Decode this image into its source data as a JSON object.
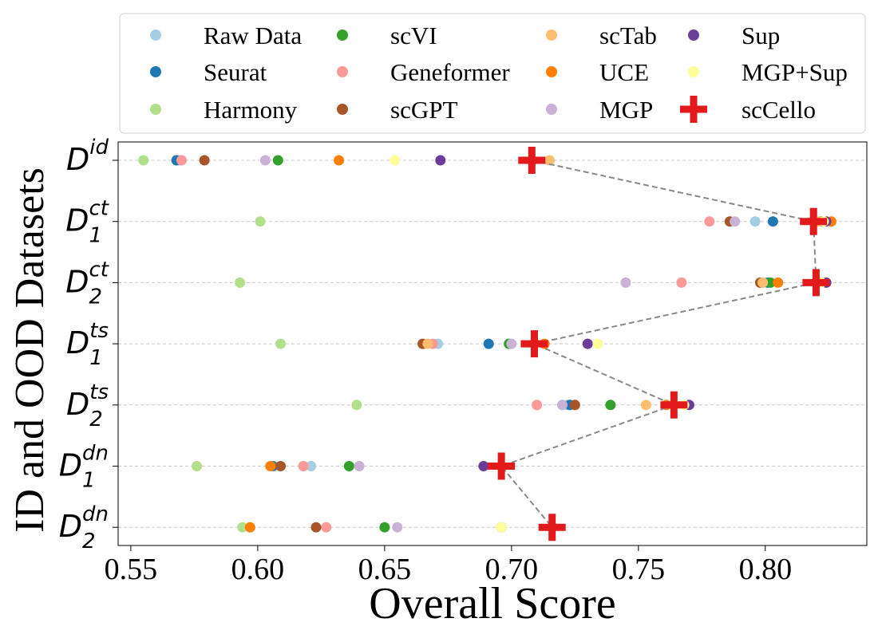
{
  "chart_data": {
    "type": "scatter",
    "title": "",
    "xlabel": "Overall Score",
    "ylabel": "ID and OOD Datasets",
    "xlim": [
      0.545,
      0.84
    ],
    "xticks": [
      "0.55",
      "0.60",
      "0.65",
      "0.70",
      "0.75",
      "0.80"
    ],
    "xtick_values": [
      0.55,
      0.6,
      0.65,
      0.7,
      0.75,
      0.8
    ],
    "grid": "horizontal dashed",
    "legend_position": "top",
    "categories": [
      {
        "base": "D",
        "sup": "id",
        "sub": ""
      },
      {
        "base": "D",
        "sup": "ct",
        "sub": "1"
      },
      {
        "base": "D",
        "sup": "ct",
        "sub": "2"
      },
      {
        "base": "D",
        "sup": "ts",
        "sub": "1"
      },
      {
        "base": "D",
        "sup": "ts",
        "sub": "2"
      },
      {
        "base": "D",
        "sup": "dn",
        "sub": "1"
      },
      {
        "base": "D",
        "sup": "dn",
        "sub": "2"
      }
    ],
    "series": [
      {
        "name": "Raw Data",
        "color": "#a6cee3",
        "values": [
          0.569,
          0.796,
          0.799,
          0.671,
          0.722,
          0.621,
          0.696
        ]
      },
      {
        "name": "Seurat",
        "color": "#1f78b4",
        "values": [
          0.568,
          0.803,
          0.801,
          0.691,
          0.723,
          0.606,
          0.696
        ]
      },
      {
        "name": "Harmony",
        "color": "#b2df8a",
        "values": [
          0.555,
          0.601,
          0.593,
          0.609,
          0.639,
          0.576,
          0.594
        ]
      },
      {
        "name": "scVI",
        "color": "#33a02c",
        "values": [
          0.608,
          0.822,
          0.802,
          0.699,
          0.739,
          0.636,
          0.65
        ]
      },
      {
        "name": "Geneformer",
        "color": "#fb9a99",
        "values": [
          0.57,
          0.778,
          0.767,
          0.669,
          0.71,
          0.618,
          0.627
        ]
      },
      {
        "name": "scGPT",
        "color": "#a65628",
        "values": [
          0.579,
          0.786,
          0.798,
          0.665,
          0.725,
          0.609,
          0.623
        ]
      },
      {
        "name": "scTab",
        "color": "#fdbf6f",
        "values": [
          0.715,
          0.821,
          0.799,
          0.667,
          0.753,
          0.605,
          0.696
        ]
      },
      {
        "name": "UCE",
        "color": "#ff7f00",
        "values": [
          0.632,
          0.826,
          0.805,
          0.713,
          0.761,
          0.605,
          0.597
        ]
      },
      {
        "name": "MGP",
        "color": "#cab2d6",
        "values": [
          0.603,
          0.788,
          0.745,
          0.7,
          0.72,
          0.64,
          0.655
        ]
      },
      {
        "name": "Sup",
        "color": "#6a3d9a",
        "values": [
          0.672,
          0.824,
          0.824,
          0.73,
          0.77,
          0.689,
          0.716
        ]
      },
      {
        "name": "MGP+Sup",
        "color": "#ffff99",
        "values": [
          0.654,
          0.823,
          0.822,
          0.734,
          0.768,
          0.696,
          0.696
        ]
      }
    ],
    "highlight": {
      "name": "scCello",
      "color": "#e31a1c",
      "values": [
        0.708,
        0.819,
        0.82,
        0.709,
        0.764,
        0.696,
        0.716
      ]
    },
    "legend": [
      "Raw Data",
      "scVI",
      "scTab",
      "Sup",
      "Seurat",
      "Geneformer",
      "UCE",
      "MGP+Sup",
      "Harmony",
      "scGPT",
      "MGP",
      "scCello"
    ]
  }
}
